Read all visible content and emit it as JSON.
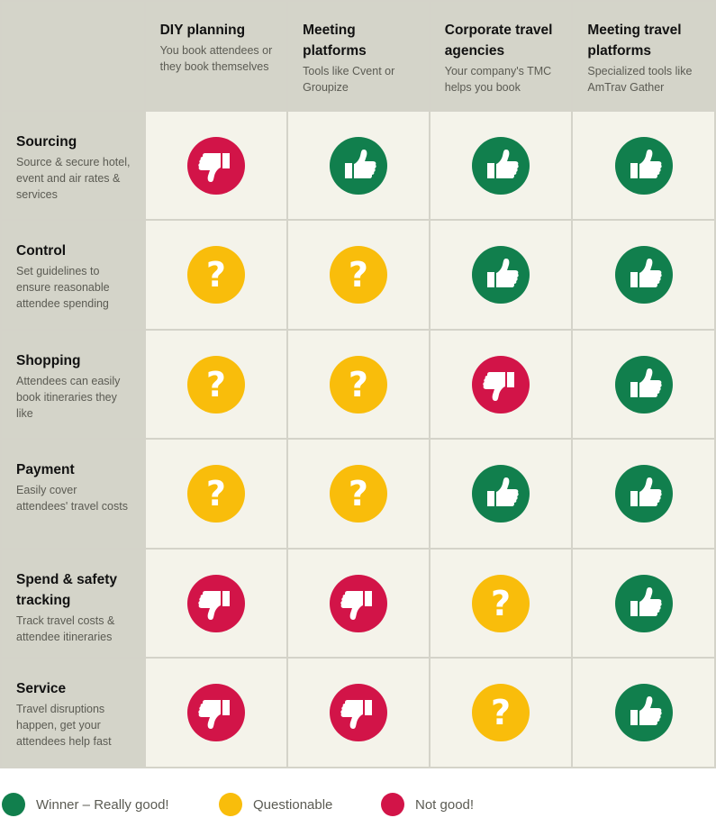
{
  "colors": {
    "good": "#117f4d",
    "questionable": "#f9bd0b",
    "bad": "#d21448"
  },
  "icons": {
    "good": "thumbs-up-icon",
    "questionable": "question-mark-icon",
    "bad": "thumbs-down-icon"
  },
  "columns": [
    {
      "title": "DIY planning",
      "desc": "You book attendees or they book themselves"
    },
    {
      "title": "Meeting platforms",
      "desc": "Tools like Cvent or Groupize"
    },
    {
      "title": "Corporate travel agencies",
      "desc": "Your company's TMC helps you book"
    },
    {
      "title": "Meeting travel platforms",
      "desc": "Specialized tools like AmTrav Gather"
    }
  ],
  "rows": [
    {
      "title": "Sourcing",
      "desc": "Source & secure hotel, event and air rates & services",
      "ratings": [
        "bad",
        "good",
        "good",
        "good"
      ]
    },
    {
      "title": "Control",
      "desc": "Set guidelines to ensure reasonable attendee spending",
      "ratings": [
        "questionable",
        "questionable",
        "good",
        "good"
      ]
    },
    {
      "title": "Shopping",
      "desc": "Attendees can easily book itineraries they like",
      "ratings": [
        "questionable",
        "questionable",
        "bad",
        "good"
      ]
    },
    {
      "title": "Payment",
      "desc": "Easily cover attendees' travel costs",
      "ratings": [
        "questionable",
        "questionable",
        "good",
        "good"
      ]
    },
    {
      "title": "Spend & safety tracking",
      "desc": "Track travel costs & attendee itineraries",
      "ratings": [
        "bad",
        "bad",
        "questionable",
        "good"
      ]
    },
    {
      "title": "Service",
      "desc": "Travel disruptions happen, get your attendees help fast",
      "ratings": [
        "bad",
        "bad",
        "questionable",
        "good"
      ]
    }
  ],
  "legend": [
    {
      "key": "good",
      "label": "Winner – Really good!"
    },
    {
      "key": "questionable",
      "label": "Questionable"
    },
    {
      "key": "bad",
      "label": "Not good!"
    }
  ],
  "chart_data": {
    "type": "table",
    "columns": [
      "DIY planning",
      "Meeting platforms",
      "Corporate travel agencies",
      "Meeting travel platforms"
    ],
    "rows": [
      "Sourcing",
      "Control",
      "Shopping",
      "Payment",
      "Spend & safety tracking",
      "Service"
    ],
    "values": [
      [
        "Not good!",
        "Winner – Really good!",
        "Winner – Really good!",
        "Winner – Really good!"
      ],
      [
        "Questionable",
        "Questionable",
        "Winner – Really good!",
        "Winner – Really good!"
      ],
      [
        "Questionable",
        "Questionable",
        "Not good!",
        "Winner – Really good!"
      ],
      [
        "Questionable",
        "Questionable",
        "Winner – Really good!",
        "Winner – Really good!"
      ],
      [
        "Not good!",
        "Not good!",
        "Questionable",
        "Winner – Really good!"
      ],
      [
        "Not good!",
        "Not good!",
        "Questionable",
        "Winner – Really good!"
      ]
    ]
  }
}
